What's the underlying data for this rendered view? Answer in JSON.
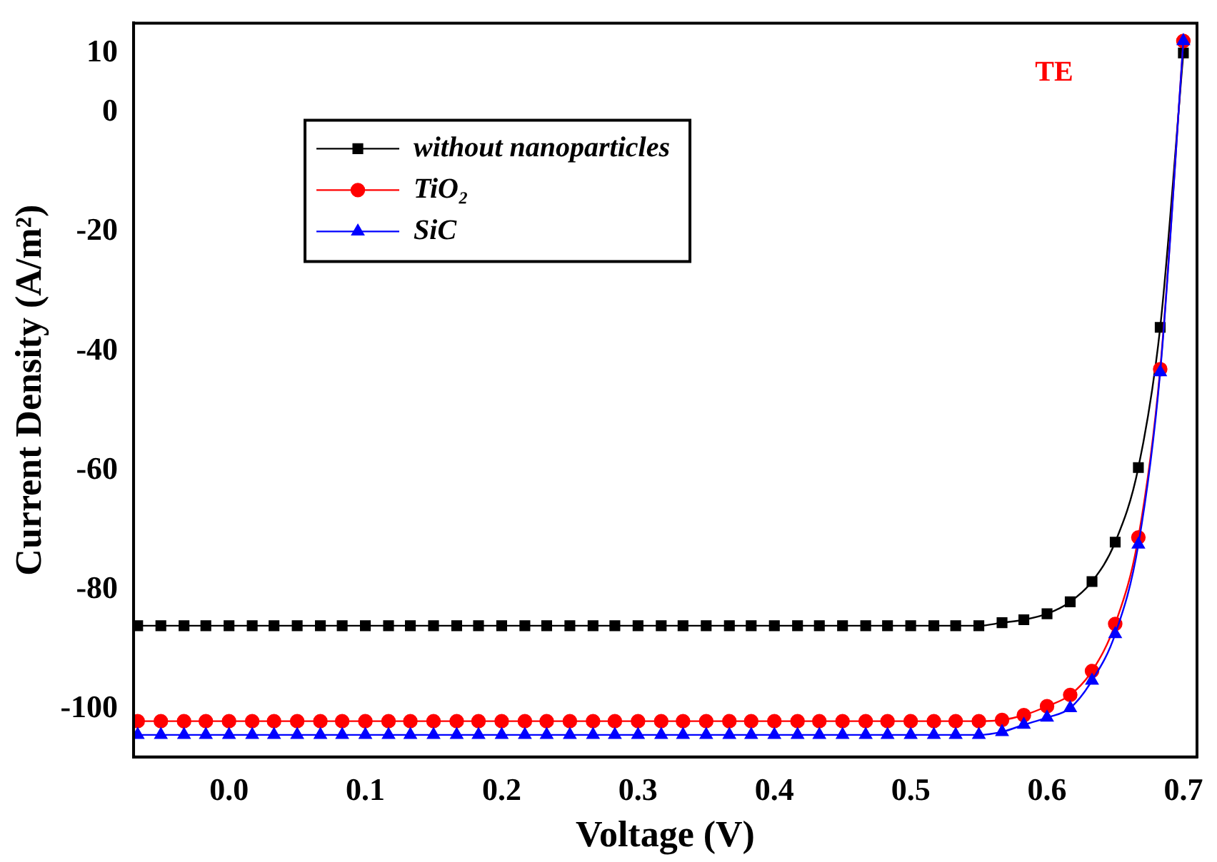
{
  "chart_data": {
    "type": "line",
    "xlabel": "Voltage (V)",
    "ylabel": "Current Density (A/m²)",
    "annotations": [
      "TE"
    ],
    "x": [
      -0.067,
      -0.05,
      -0.033,
      -0.017,
      0,
      0.017,
      0.033,
      0.05,
      0.067,
      0.083,
      0.1,
      0.117,
      0.133,
      0.15,
      0.167,
      0.183,
      0.2,
      0.217,
      0.233,
      0.25,
      0.267,
      0.283,
      0.3,
      0.317,
      0.333,
      0.35,
      0.367,
      0.383,
      0.4,
      0.417,
      0.433,
      0.45,
      0.467,
      0.483,
      0.5,
      0.517,
      0.533,
      0.55,
      0.567,
      0.583,
      0.6,
      0.617,
      0.633,
      0.65,
      0.667,
      0.683,
      0.7
    ],
    "series": [
      {
        "name": "without nanoparticles",
        "color": "#000000",
        "marker": "square",
        "values": [
          -86,
          -86,
          -86,
          -86,
          -86,
          -86,
          -86,
          -86,
          -86,
          -86,
          -86,
          -86,
          -86,
          -86,
          -86,
          -86,
          -86,
          -86,
          -86,
          -86,
          -86,
          -86,
          -86,
          -86,
          -86,
          -86,
          -86,
          -86,
          -86,
          -86,
          -86,
          -86,
          -86,
          -86,
          -86,
          -86,
          -86,
          -86,
          -85.5,
          -85,
          -84,
          -82,
          -78.6,
          -72,
          -59.5,
          -36,
          10
        ]
      },
      {
        "name": "TiO₂",
        "color": "#ff0000",
        "marker": "circle",
        "values": [
          -102,
          -102,
          -102,
          -102,
          -102,
          -102,
          -102,
          -102,
          -102,
          -102,
          -102,
          -102,
          -102,
          -102,
          -102,
          -102,
          -102,
          -102,
          -102,
          -102,
          -102,
          -102,
          -102,
          -102,
          -102,
          -102,
          -102,
          -102,
          -102,
          -102,
          -102,
          -102,
          -102,
          -102,
          -102,
          -102,
          -102,
          -102,
          -101.8,
          -101,
          -99.5,
          -97.6,
          -93.6,
          -85.7,
          -71.2,
          -43,
          12
        ]
      },
      {
        "name": "SiC",
        "color": "#0000ff",
        "marker": "triangle",
        "values": [
          -104.3,
          -104.3,
          -104.3,
          -104.3,
          -104.3,
          -104.3,
          -104.3,
          -104.3,
          -104.3,
          -104.3,
          -104.3,
          -104.3,
          -104.3,
          -104.3,
          -104.3,
          -104.3,
          -104.3,
          -104.3,
          -104.3,
          -104.3,
          -104.3,
          -104.3,
          -104.3,
          -104.3,
          -104.3,
          -104.3,
          -104.3,
          -104.3,
          -104.3,
          -104.3,
          -104.3,
          -104.3,
          -104.3,
          -104.3,
          -104.3,
          -104.3,
          -104.3,
          -104.3,
          -103.8,
          -102.6,
          -101.4,
          -99.8,
          -95.2,
          -87.4,
          -72.4,
          -43.5,
          12
        ]
      }
    ],
    "xlim": [
      -0.07,
      0.71
    ],
    "xticks": [
      {
        "value": 0,
        "label": "0.0"
      },
      0.1,
      0.2,
      0.3,
      0.4,
      0.5,
      0.6,
      0.7
    ],
    "ylim": [
      -108,
      15
    ],
    "yticks": [
      10,
      0,
      -20,
      -40,
      -60,
      -80,
      -100
    ],
    "grid": false,
    "legend": "top left",
    "line_style": "solid"
  }
}
